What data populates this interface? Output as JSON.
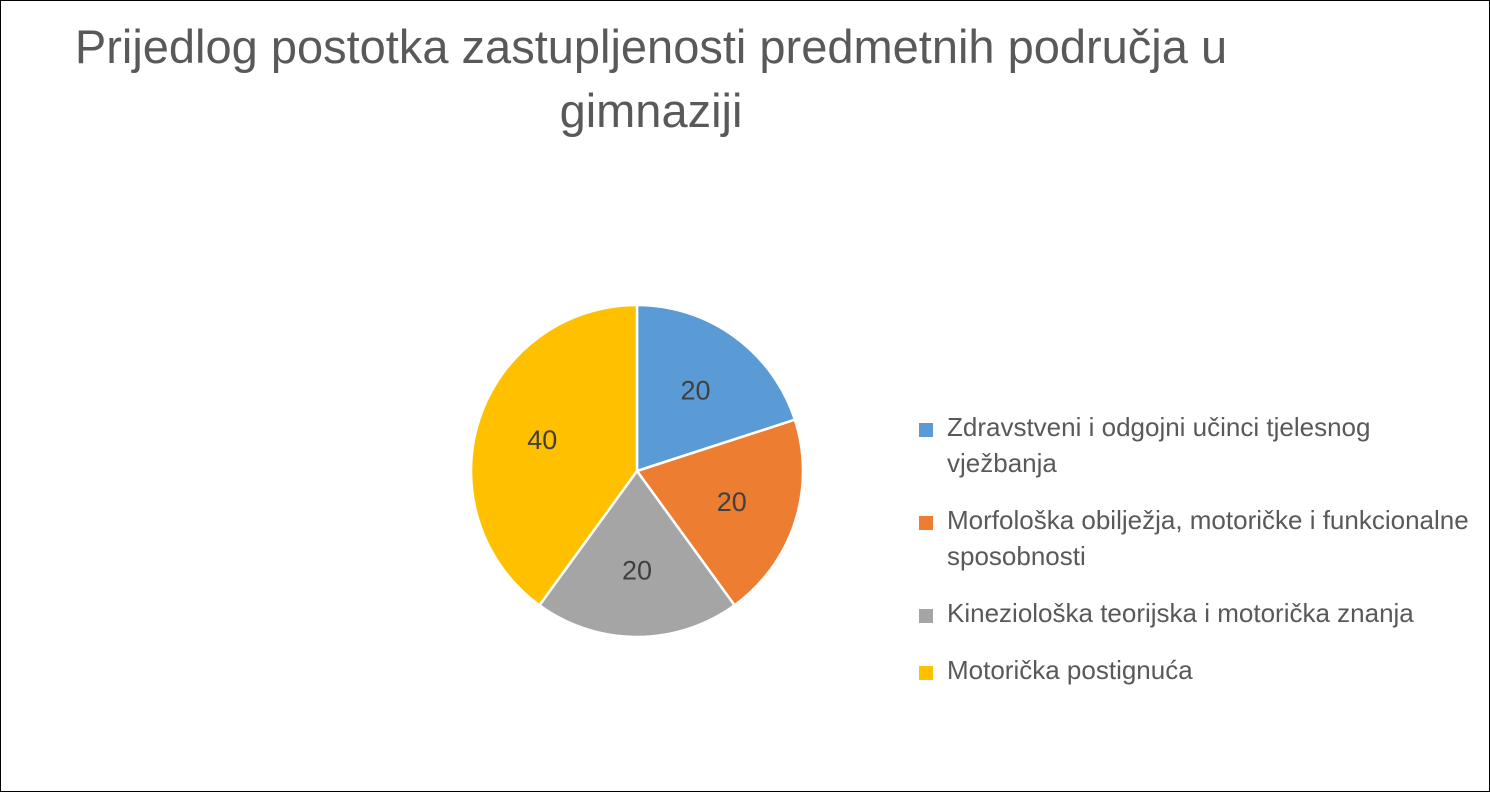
{
  "chart_data": {
    "type": "pie",
    "title": "Prijedlog postotka zastupljenosti predmetnih područja u gimnaziji",
    "categories": [
      "Zdravstveni i odgojni učinci tjelesnog vježbanja",
      "Morfološka obilježja, motoričke i funkcionalne sposobnosti",
      "Kineziološka teorijska i motorička znanja",
      "Motorička postignuća"
    ],
    "values": [
      20,
      20,
      20,
      40
    ],
    "data_labels": [
      "20",
      "20",
      "20",
      "40"
    ],
    "colors": [
      "#5b9bd5",
      "#ed7d31",
      "#a5a5a5",
      "#ffc000"
    ],
    "legend_position": "right"
  }
}
